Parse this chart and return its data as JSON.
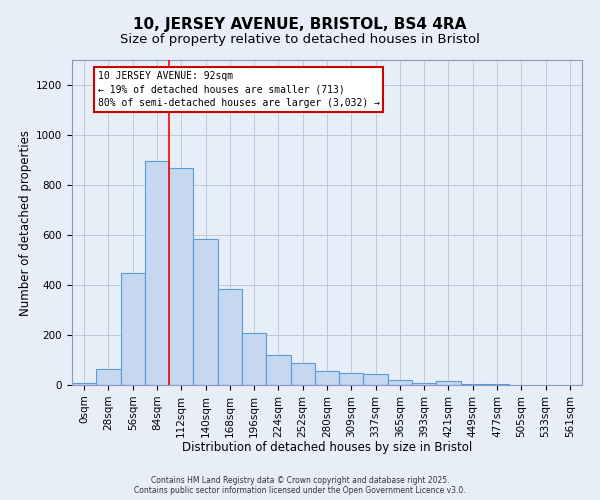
{
  "title": "10, JERSEY AVENUE, BRISTOL, BS4 4RA",
  "subtitle": "Size of property relative to detached houses in Bristol",
  "xlabel": "Distribution of detached houses by size in Bristol",
  "ylabel": "Number of detached properties",
  "bar_labels": [
    "0sqm",
    "28sqm",
    "56sqm",
    "84sqm",
    "112sqm",
    "140sqm",
    "168sqm",
    "196sqm",
    "224sqm",
    "252sqm",
    "280sqm",
    "309sqm",
    "337sqm",
    "365sqm",
    "393sqm",
    "421sqm",
    "449sqm",
    "477sqm",
    "505sqm",
    "533sqm",
    "561sqm"
  ],
  "bar_values": [
    8,
    65,
    450,
    895,
    870,
    585,
    383,
    207,
    120,
    90,
    55,
    50,
    45,
    20,
    10,
    15,
    5,
    3,
    2,
    1,
    1
  ],
  "bar_color": "#c5d8f0",
  "bar_edge_color": "#5b9bd5",
  "background_color": "#e8eef8",
  "grid_color": "#c0c8d8",
  "red_line_x": 3.5,
  "annotation_text": "10 JERSEY AVENUE: 92sqm\n← 19% of detached houses are smaller (713)\n80% of semi-detached houses are larger (3,032) →",
  "annotation_box_color": "#ffffff",
  "annotation_box_edge": "#cc0000",
  "footer_text": "Contains HM Land Registry data © Crown copyright and database right 2025.\nContains public sector information licensed under the Open Government Licence v3.0.",
  "ylim": [
    0,
    1300
  ],
  "yticks": [
    0,
    200,
    400,
    600,
    800,
    1000,
    1200
  ],
  "title_fontsize": 11,
  "subtitle_fontsize": 9.5,
  "axis_label_fontsize": 8.5,
  "tick_fontsize": 7.5,
  "annot_fontsize": 7.0,
  "footer_fontsize": 5.5
}
